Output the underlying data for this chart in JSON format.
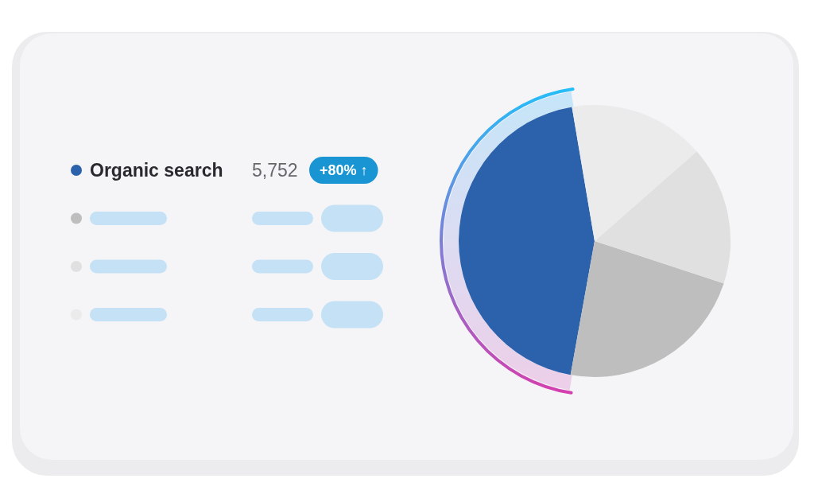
{
  "chart_data": {
    "type": "pie",
    "categories": [
      "Organic search",
      null,
      null,
      null
    ],
    "values": [
      44.5,
      22.8,
      16.5,
      16.2
    ],
    "colors": [
      "#2b62ab",
      "#bebebe",
      "#e0e0e0",
      "#ebebeb"
    ],
    "legend": "left",
    "annotations": [
      "5,752",
      "+80% ↑"
    ]
  }
}
